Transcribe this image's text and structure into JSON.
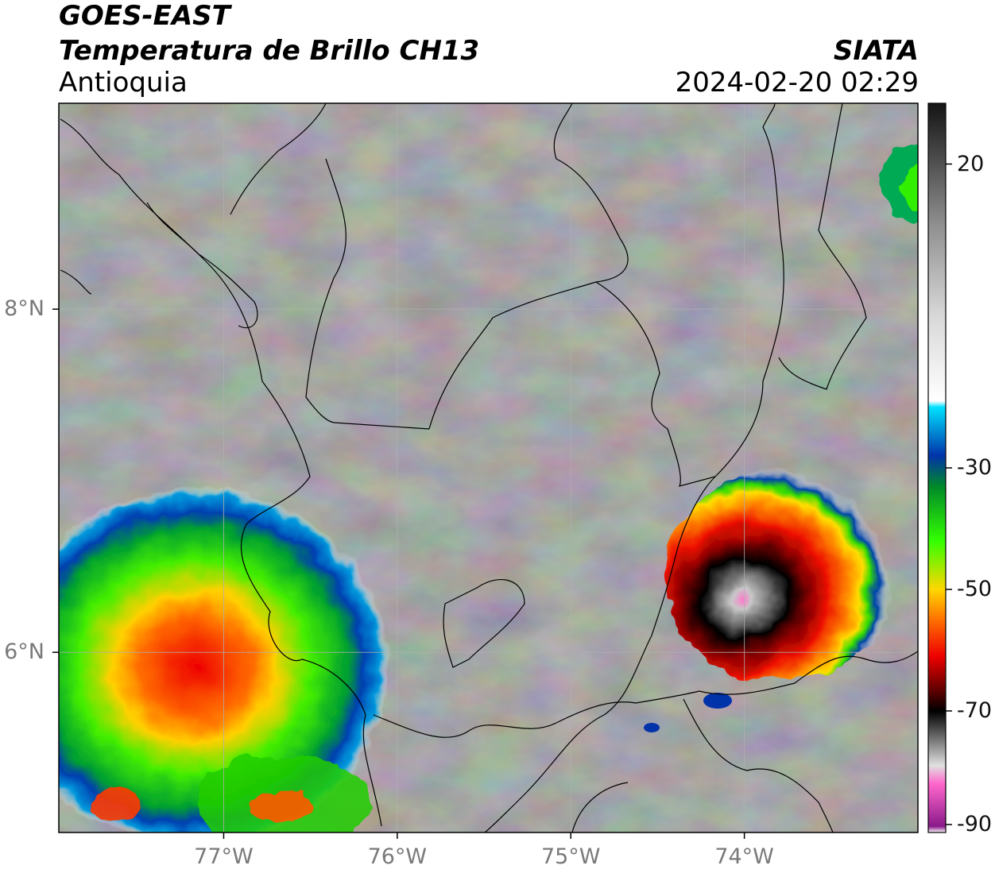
{
  "header": {
    "title_line1": "GOES-EAST",
    "title_line2": "Temperatura de Brillo CH13",
    "region": "Antioquia",
    "organization": "SIATA",
    "timestamp": "2024-02-20 02:29"
  },
  "map": {
    "lat_ticks": [
      "8°N",
      "6°N"
    ],
    "lon_ticks": [
      "77°W",
      "76°W",
      "75°W",
      "74°W"
    ],
    "lat_values": [
      8,
      6
    ],
    "lon_values": [
      -77,
      -76,
      -75,
      -74
    ],
    "extent": {
      "lon_min": -77.95,
      "lon_max": -73.0,
      "lat_min": 4.95,
      "lat_max": 9.2
    }
  },
  "colorbar": {
    "range": [
      -90,
      30
    ],
    "tick_labels": [
      "20",
      "-30",
      "-50",
      "-70",
      "-90"
    ],
    "tick_values": [
      20,
      -30,
      -50,
      -70,
      -90
    ],
    "stops": [
      {
        "t": 30,
        "color": "#141414"
      },
      {
        "t": 10,
        "color": "#8f8f8f"
      },
      {
        "t": -5,
        "color": "#d8d8d8"
      },
      {
        "t": -19,
        "color": "#ffffff"
      },
      {
        "t": -20,
        "color": "#00e1ff"
      },
      {
        "t": -28,
        "color": "#0033aa"
      },
      {
        "t": -33,
        "color": "#00882a"
      },
      {
        "t": -42,
        "color": "#33ff00"
      },
      {
        "t": -50,
        "color": "#ffd700"
      },
      {
        "t": -55,
        "color": "#ff7000"
      },
      {
        "t": -61,
        "color": "#ee0000"
      },
      {
        "t": -67,
        "color": "#550000"
      },
      {
        "t": -70,
        "color": "#000000"
      },
      {
        "t": -79,
        "color": "#e0e0e0"
      },
      {
        "t": -82,
        "color": "#ff66cc"
      },
      {
        "t": -89,
        "color": "#8a1a8a"
      },
      {
        "t": -90,
        "color": "#ffffff"
      }
    ]
  },
  "colors": {
    "cloud_bg": "#7c7c7c",
    "border": "#000000",
    "grid": "#b0b0b0"
  }
}
